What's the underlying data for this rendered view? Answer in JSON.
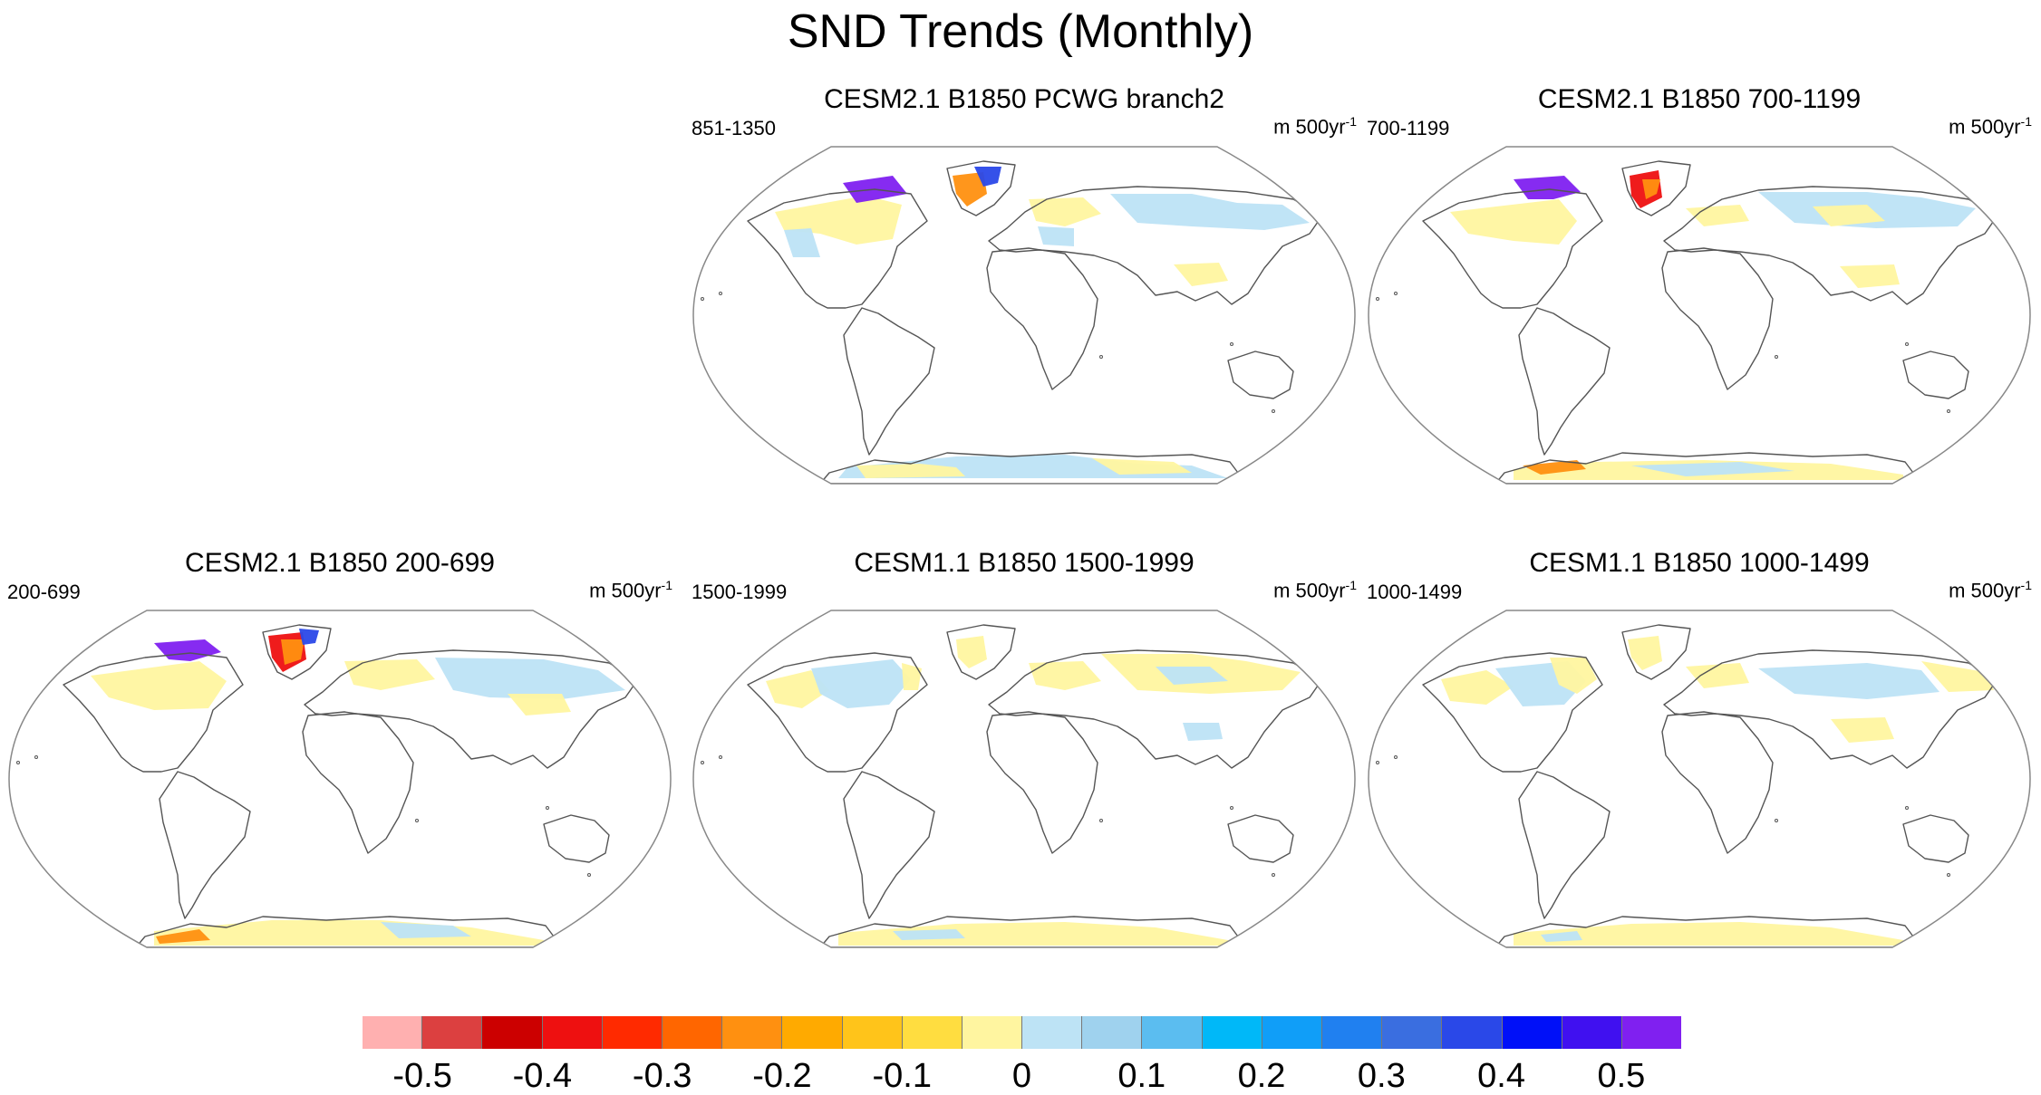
{
  "title": "SND Trends (Monthly)",
  "panels": [
    {
      "title": "CESM2.1 B1850 PCWG branch2",
      "left_label": "851-1350",
      "units": "m 500yr",
      "units_sup": "-1"
    },
    {
      "title": "CESM2.1 B1850 700-1199",
      "left_label": "700-1199",
      "units": "m 500yr",
      "units_sup": "-1"
    },
    {
      "title": "CESM2.1 B1850 200-699",
      "left_label": "200-699",
      "units": "m 500yr",
      "units_sup": "-1"
    },
    {
      "title": "CESM1.1 B1850 1500-1999",
      "left_label": "1500-1999",
      "units": "m 500yr",
      "units_sup": "-1"
    },
    {
      "title": "CESM1.1 B1850 1000-1499",
      "left_label": "1000-1499",
      "units": "m 500yr",
      "units_sup": "-1"
    }
  ],
  "colorbar": {
    "colors": [
      "#ffb0b0",
      "#dc4040",
      "#cc0000",
      "#ee1010",
      "#ff2a00",
      "#ff6600",
      "#ff9010",
      "#ffaa00",
      "#ffc41a",
      "#ffdd40",
      "#fff5a0",
      "#bde3f5",
      "#9fd2ee",
      "#5bbdf0",
      "#00b8f8",
      "#109ef8",
      "#2080f0",
      "#3a6ee0",
      "#2a48e8",
      "#0010f8",
      "#4010f0",
      "#8020f0"
    ],
    "ticks": [
      "-0.5",
      "-0.4",
      "-0.3",
      "-0.2",
      "-0.1",
      "0",
      "0.1",
      "0.2",
      "0.3",
      "0.4",
      "0.5"
    ]
  }
}
